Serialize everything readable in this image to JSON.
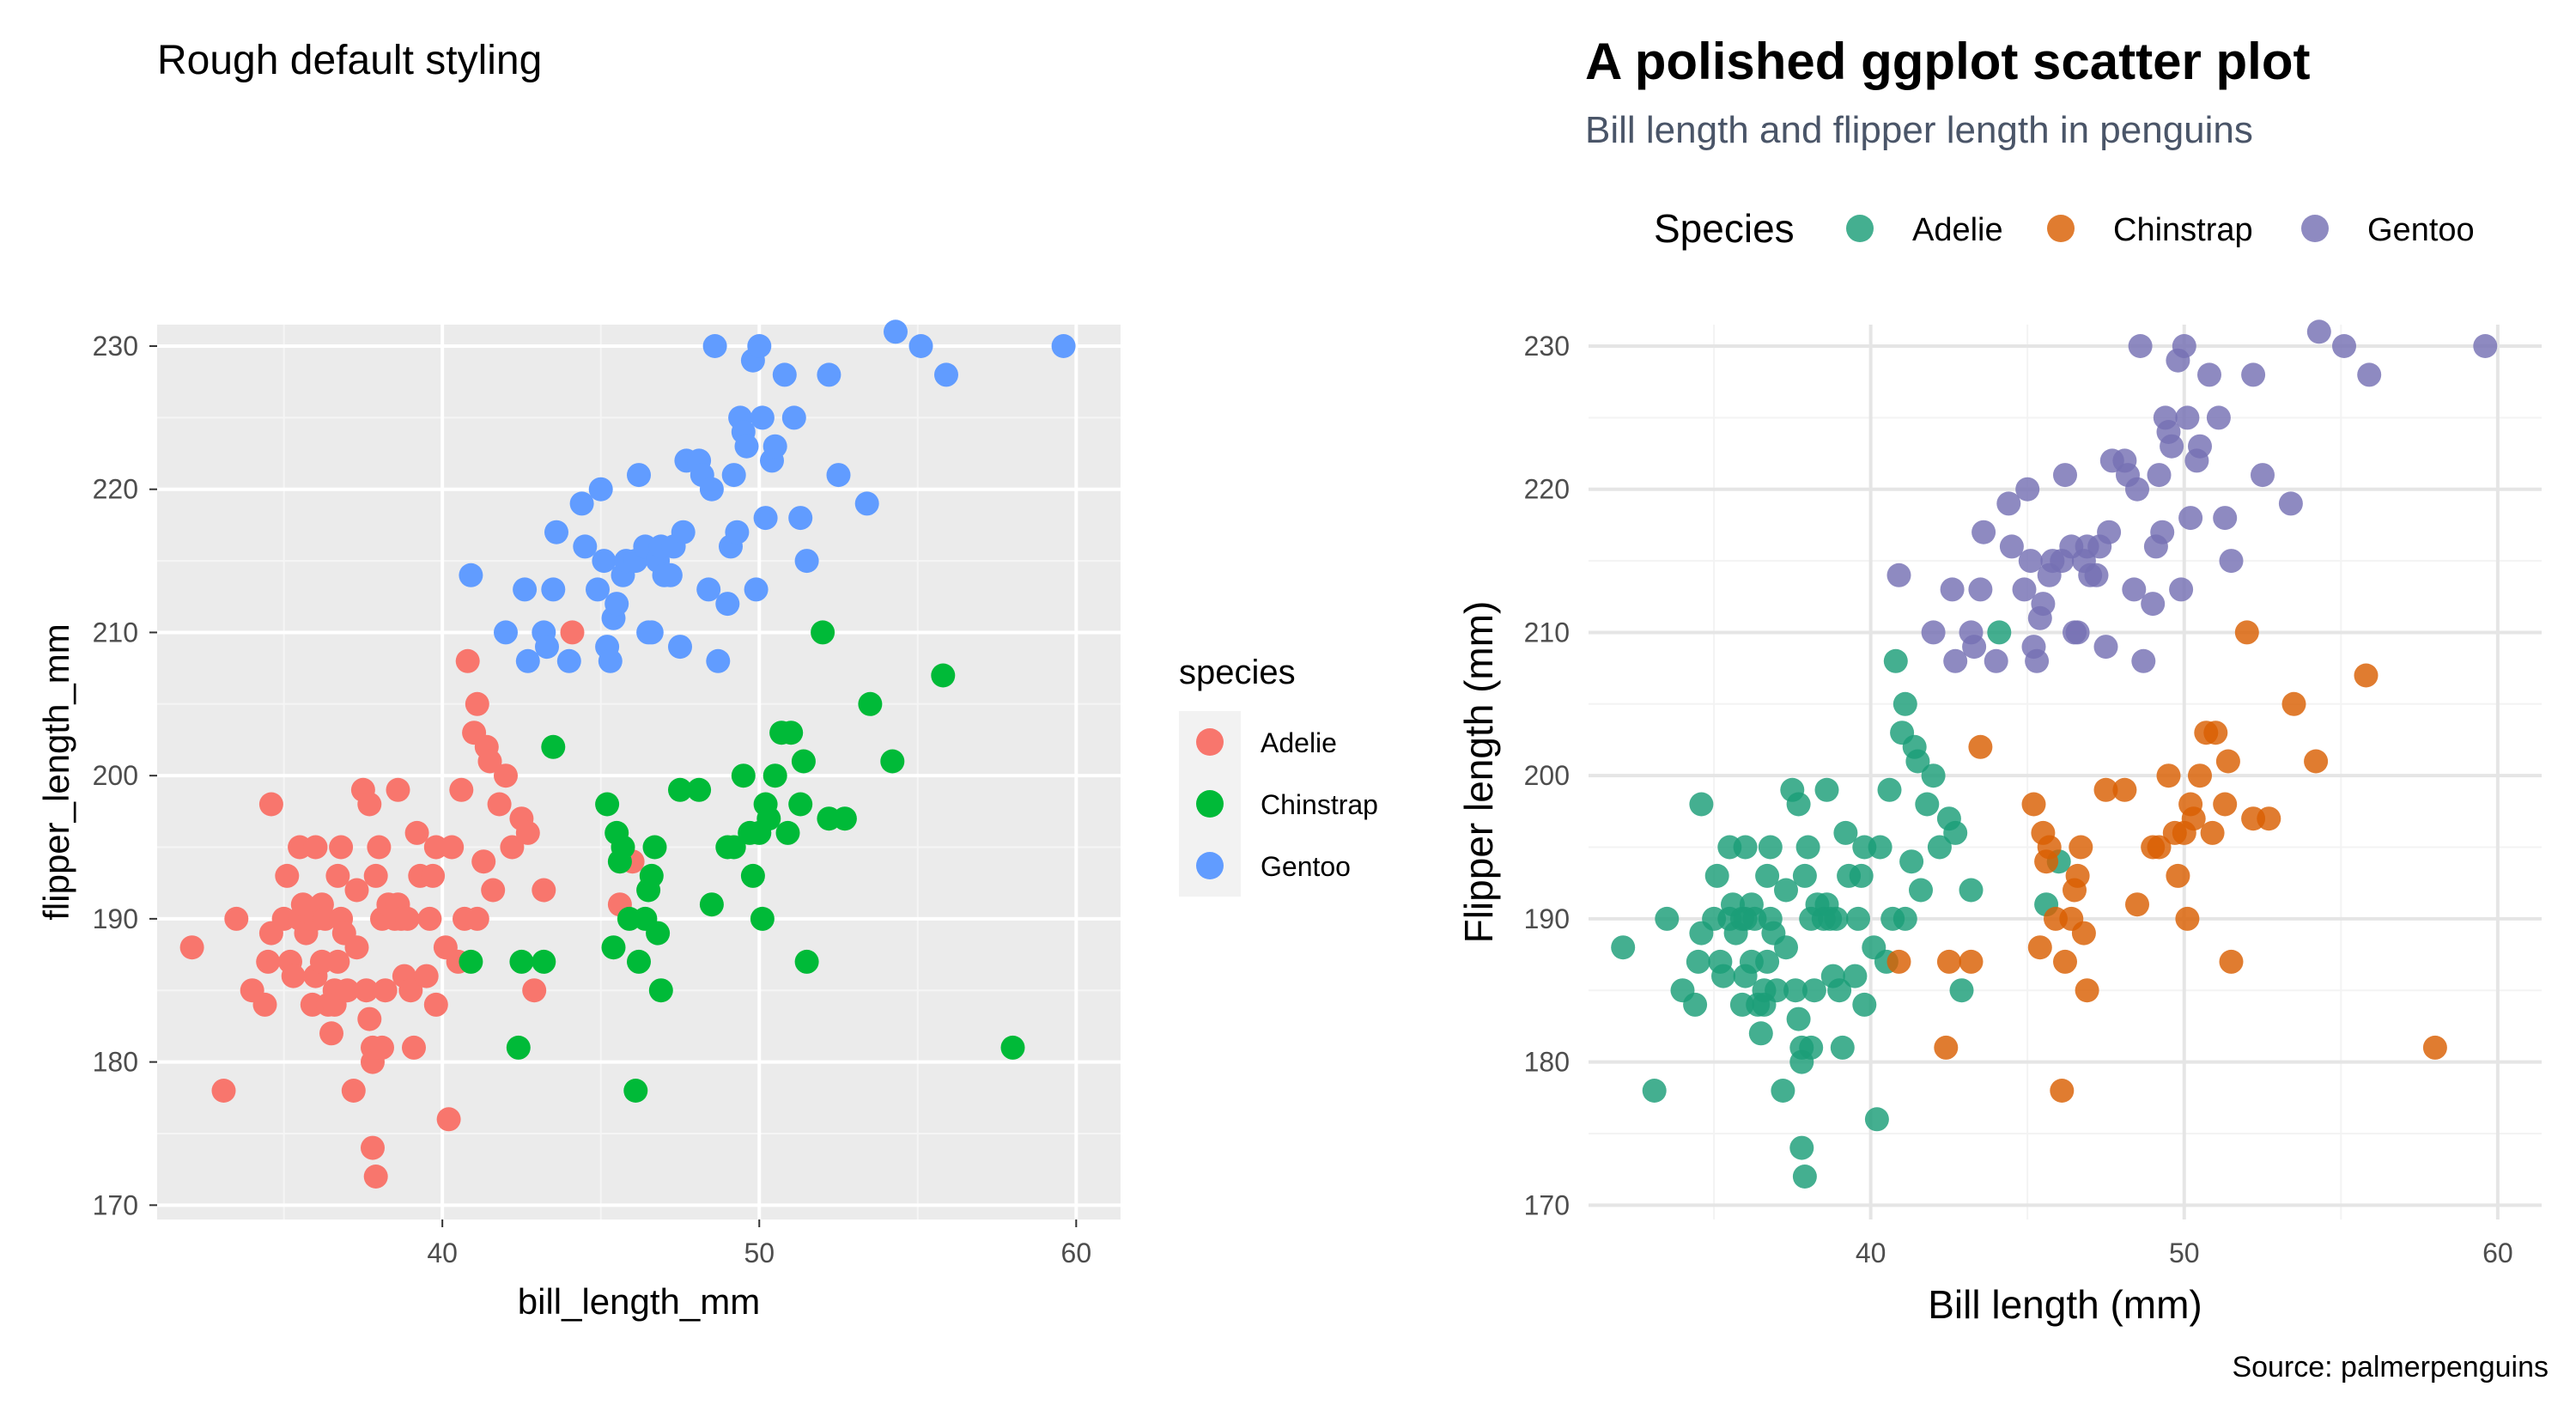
{
  "colors": {
    "default_palette": [
      "#F8766D",
      "#00BA38",
      "#619CFF"
    ],
    "polished_palette": [
      "#1B9E77",
      "#D95F02",
      "#7570B3"
    ],
    "panel_bg": "#EBEBEB",
    "subtitle": "#4a5568"
  },
  "chart_data": [
    {
      "type": "scatter",
      "title": "Rough default styling",
      "subtitle": "",
      "xlabel": "bill_length_mm",
      "ylabel": "flipper_length_mm",
      "xlim": [
        31,
        61.4
      ],
      "ylim": [
        169,
        231.5
      ],
      "xticks": [
        40,
        50,
        60
      ],
      "yticks": [
        170,
        180,
        190,
        200,
        210,
        220,
        230
      ],
      "grid": true,
      "legend": {
        "title": "species",
        "position": "right",
        "labels": [
          "Adelie",
          "Chinstrap",
          "Gentoo"
        ]
      },
      "caption": ""
    },
    {
      "type": "scatter",
      "title": "A polished ggplot scatter plot",
      "subtitle": "Bill length and flipper length in penguins",
      "xlabel": "Bill length (mm)",
      "ylabel": "Flipper length (mm)",
      "xlim": [
        31,
        61.4
      ],
      "ylim": [
        169,
        231.5
      ],
      "xticks": [
        40,
        50,
        60
      ],
      "yticks": [
        170,
        180,
        190,
        200,
        210,
        220,
        230
      ],
      "grid": true,
      "legend": {
        "title": "Species",
        "position": "top",
        "labels": [
          "Adelie",
          "Chinstrap",
          "Gentoo"
        ]
      },
      "caption": "Source: palmerpenguins"
    }
  ],
  "series_points": [
    {
      "name": "Adelie",
      "points": [
        [
          32.1,
          188
        ],
        [
          33.1,
          178
        ],
        [
          33.5,
          190
        ],
        [
          34.0,
          185
        ],
        [
          34.4,
          184
        ],
        [
          34.5,
          187
        ],
        [
          34.6,
          198
        ],
        [
          34.6,
          189
        ],
        [
          35.0,
          190
        ],
        [
          35.1,
          193
        ],
        [
          35.2,
          187
        ],
        [
          35.3,
          186
        ],
        [
          35.5,
          195
        ],
        [
          35.5,
          190
        ],
        [
          35.6,
          191
        ],
        [
          35.7,
          189
        ],
        [
          35.9,
          190
        ],
        [
          35.9,
          184
        ],
        [
          36.0,
          195
        ],
        [
          36.0,
          186
        ],
        [
          36.0,
          190
        ],
        [
          36.2,
          187
        ],
        [
          36.2,
          191
        ],
        [
          36.3,
          190
        ],
        [
          36.4,
          184
        ],
        [
          36.5,
          182
        ],
        [
          36.6,
          185
        ],
        [
          36.6,
          184
        ],
        [
          36.7,
          187
        ],
        [
          36.7,
          193
        ],
        [
          36.8,
          195
        ],
        [
          36.8,
          190
        ],
        [
          36.9,
          189
        ],
        [
          37.0,
          185
        ],
        [
          37.2,
          178
        ],
        [
          37.3,
          188
        ],
        [
          37.3,
          192
        ],
        [
          37.5,
          199
        ],
        [
          37.6,
          185
        ],
        [
          37.7,
          198
        ],
        [
          37.7,
          183
        ],
        [
          37.8,
          181
        ],
        [
          37.8,
          174
        ],
        [
          37.8,
          180
        ],
        [
          37.9,
          172
        ],
        [
          37.9,
          193
        ],
        [
          38.0,
          195
        ],
        [
          38.1,
          181
        ],
        [
          38.1,
          190
        ],
        [
          38.2,
          185
        ],
        [
          38.3,
          191
        ],
        [
          38.5,
          190
        ],
        [
          38.6,
          191
        ],
        [
          38.6,
          199
        ],
        [
          38.7,
          190
        ],
        [
          38.8,
          186
        ],
        [
          38.9,
          190
        ],
        [
          39.0,
          185
        ],
        [
          39.1,
          181
        ],
        [
          39.2,
          196
        ],
        [
          39.3,
          193
        ],
        [
          39.5,
          186
        ],
        [
          39.6,
          190
        ],
        [
          39.7,
          193
        ],
        [
          39.8,
          184
        ],
        [
          39.8,
          195
        ],
        [
          40.1,
          188
        ],
        [
          40.2,
          176
        ],
        [
          40.3,
          195
        ],
        [
          40.5,
          187
        ],
        [
          40.6,
          199
        ],
        [
          40.7,
          190
        ],
        [
          40.8,
          208
        ],
        [
          41.0,
          203
        ],
        [
          41.1,
          190
        ],
        [
          41.1,
          205
        ],
        [
          41.3,
          194
        ],
        [
          41.4,
          202
        ],
        [
          41.5,
          201
        ],
        [
          41.6,
          192
        ],
        [
          41.8,
          198
        ],
        [
          42.0,
          200
        ],
        [
          42.2,
          195
        ],
        [
          42.5,
          197
        ],
        [
          42.7,
          196
        ],
        [
          42.9,
          185
        ],
        [
          43.2,
          192
        ],
        [
          44.1,
          210
        ],
        [
          45.6,
          191
        ],
        [
          46.0,
          194
        ]
      ]
    },
    {
      "name": "Chinstrap",
      "points": [
        [
          40.9,
          187
        ],
        [
          42.4,
          181
        ],
        [
          42.5,
          187
        ],
        [
          43.2,
          187
        ],
        [
          43.5,
          202
        ],
        [
          45.2,
          198
        ],
        [
          45.4,
          188
        ],
        [
          45.5,
          196
        ],
        [
          45.6,
          194
        ],
        [
          45.7,
          195
        ],
        [
          45.9,
          190
        ],
        [
          46.1,
          178
        ],
        [
          46.2,
          187
        ],
        [
          46.4,
          190
        ],
        [
          46.5,
          192
        ],
        [
          46.6,
          193
        ],
        [
          46.7,
          195
        ],
        [
          46.8,
          189
        ],
        [
          46.9,
          185
        ],
        [
          47.5,
          199
        ],
        [
          48.1,
          199
        ],
        [
          48.5,
          191
        ],
        [
          49.0,
          195
        ],
        [
          49.2,
          195
        ],
        [
          49.5,
          200
        ],
        [
          49.7,
          196
        ],
        [
          49.8,
          193
        ],
        [
          50.0,
          196
        ],
        [
          50.1,
          190
        ],
        [
          50.2,
          198
        ],
        [
          50.3,
          197
        ],
        [
          50.5,
          200
        ],
        [
          50.7,
          203
        ],
        [
          50.9,
          196
        ],
        [
          51.0,
          203
        ],
        [
          51.3,
          198
        ],
        [
          51.4,
          201
        ],
        [
          51.5,
          187
        ],
        [
          52.0,
          210
        ],
        [
          52.2,
          197
        ],
        [
          52.7,
          197
        ],
        [
          53.5,
          205
        ],
        [
          54.2,
          201
        ],
        [
          55.8,
          207
        ],
        [
          58.0,
          181
        ]
      ]
    },
    {
      "name": "Gentoo",
      "points": [
        [
          40.9,
          214
        ],
        [
          42.0,
          210
        ],
        [
          42.6,
          213
        ],
        [
          42.7,
          208
        ],
        [
          43.2,
          210
        ],
        [
          43.3,
          209
        ],
        [
          43.5,
          213
        ],
        [
          43.6,
          217
        ],
        [
          44.0,
          208
        ],
        [
          44.4,
          219
        ],
        [
          44.5,
          216
        ],
        [
          44.9,
          213
        ],
        [
          45.0,
          220
        ],
        [
          45.1,
          215
        ],
        [
          45.2,
          209
        ],
        [
          45.3,
          208
        ],
        [
          45.4,
          211
        ],
        [
          45.5,
          212
        ],
        [
          45.7,
          214
        ],
        [
          45.8,
          215
        ],
        [
          46.1,
          215
        ],
        [
          46.2,
          221
        ],
        [
          46.4,
          216
        ],
        [
          46.5,
          210
        ],
        [
          46.6,
          210
        ],
        [
          46.8,
          215
        ],
        [
          46.9,
          216
        ],
        [
          47.0,
          214
        ],
        [
          47.2,
          214
        ],
        [
          47.3,
          216
        ],
        [
          47.5,
          209
        ],
        [
          47.6,
          217
        ],
        [
          47.7,
          222
        ],
        [
          48.1,
          222
        ],
        [
          48.2,
          221
        ],
        [
          48.4,
          213
        ],
        [
          48.5,
          220
        ],
        [
          48.6,
          230
        ],
        [
          48.7,
          208
        ],
        [
          49.0,
          212
        ],
        [
          49.1,
          216
        ],
        [
          49.2,
          221
        ],
        [
          49.3,
          217
        ],
        [
          49.4,
          225
        ],
        [
          49.5,
          224
        ],
        [
          49.6,
          223
        ],
        [
          49.8,
          229
        ],
        [
          49.9,
          213
        ],
        [
          50.0,
          230
        ],
        [
          50.1,
          225
        ],
        [
          50.2,
          218
        ],
        [
          50.4,
          222
        ],
        [
          50.5,
          223
        ],
        [
          50.8,
          228
        ],
        [
          51.1,
          225
        ],
        [
          51.3,
          218
        ],
        [
          51.5,
          215
        ],
        [
          52.2,
          228
        ],
        [
          52.5,
          221
        ],
        [
          53.4,
          219
        ],
        [
          54.3,
          231
        ],
        [
          55.1,
          230
        ],
        [
          55.9,
          228
        ],
        [
          59.6,
          230
        ]
      ]
    }
  ]
}
